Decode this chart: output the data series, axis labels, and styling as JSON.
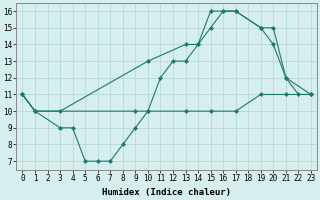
{
  "line1_x": [
    0,
    1,
    3,
    10,
    13,
    14,
    15,
    16,
    17,
    19,
    20,
    21,
    22,
    23
  ],
  "line1_y": [
    11,
    10,
    10,
    13,
    14,
    14,
    16,
    16,
    16,
    15,
    14,
    12,
    11,
    11
  ],
  "line2_x": [
    0,
    1,
    9,
    10,
    11,
    12,
    13,
    14,
    15,
    16,
    17,
    19,
    20,
    21,
    23
  ],
  "line2_y": [
    11,
    10,
    10,
    10,
    12,
    13,
    13,
    14,
    15,
    16,
    16,
    15,
    15,
    12,
    11
  ],
  "line3_x": [
    0,
    1,
    3,
    4,
    5,
    6,
    7,
    8,
    9,
    10,
    13,
    15,
    17,
    19,
    21,
    23
  ],
  "line3_y": [
    11,
    10,
    9,
    9,
    7,
    7,
    7,
    8,
    9,
    10,
    10,
    10,
    10,
    11,
    11,
    11
  ],
  "color": "#1a7a6e",
  "bg_color": "#d6eeee",
  "grid_color": "#b8d8d8",
  "xlabel": "Humidex (Indice chaleur)",
  "xlim": [
    -0.5,
    23.5
  ],
  "ylim": [
    6.5,
    16.5
  ],
  "xticks": [
    0,
    1,
    2,
    3,
    4,
    5,
    6,
    7,
    8,
    9,
    10,
    11,
    12,
    13,
    14,
    15,
    16,
    17,
    18,
    19,
    20,
    21,
    22,
    23
  ],
  "yticks": [
    7,
    8,
    9,
    10,
    11,
    12,
    13,
    14,
    15,
    16
  ],
  "label_fontsize": 6.5,
  "tick_fontsize": 5.5
}
